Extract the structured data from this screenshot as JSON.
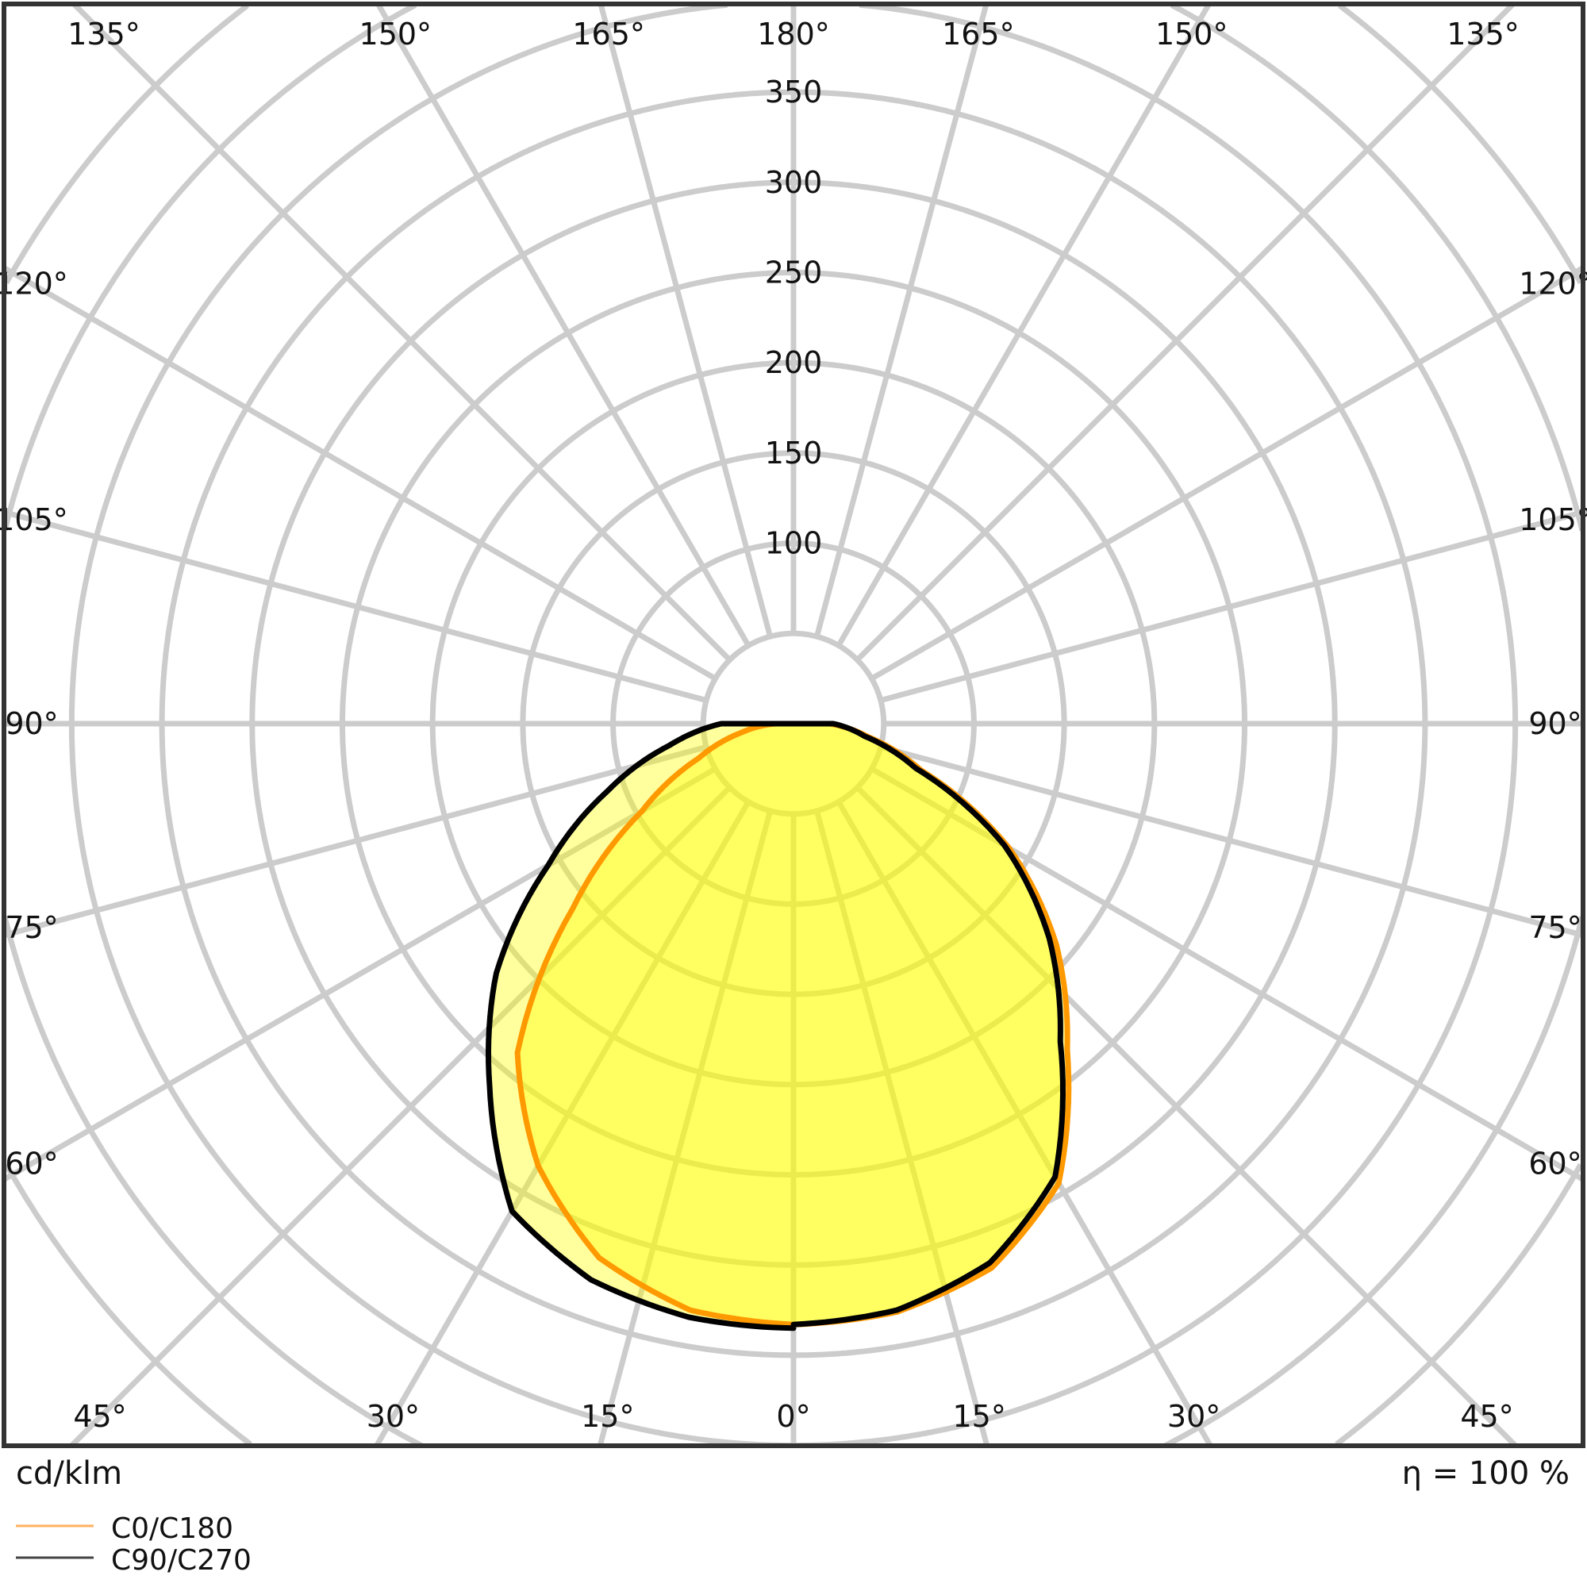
{
  "chart_data": {
    "type": "polar",
    "unit_label": "cd/klm",
    "efficiency_label": "η = 100 %",
    "radial_ticks": [
      100,
      150,
      200,
      250,
      300,
      350
    ],
    "radial_ring_step": 50,
    "angle_step": 15,
    "grid": true,
    "legend_placement": "bottom-left",
    "angle_labels": {
      "top": [
        "135°",
        "150°",
        "165°",
        "180°",
        "165°",
        "150°",
        "135°"
      ],
      "left": [
        "120°",
        "105°",
        "90°",
        "75°",
        "60°"
      ],
      "right": [
        "120°",
        "105°",
        "90°",
        "75°",
        "60°"
      ],
      "bottom": [
        "45°",
        "30°",
        "15°",
        "0°",
        "15°",
        "30°",
        "45°"
      ]
    },
    "gamma": [
      0,
      10,
      20,
      30,
      40,
      50,
      60,
      70,
      80,
      90
    ],
    "series": [
      {
        "name": "C0/C180",
        "color": "#ff9900",
        "left_values": [
          333,
          330,
          315,
          283,
          238,
          160,
          97,
          56,
          30,
          10
        ],
        "right_values": [
          333,
          331,
          321,
          294,
          236,
          190,
          138,
          75,
          42,
          20
        ]
      },
      {
        "name": "C90/C270",
        "color": "#000000",
        "left_values": [
          335,
          334,
          328,
          312,
          262,
          215,
          157,
          110,
          70,
          40
        ],
        "right_values": [
          333,
          330,
          318,
          290,
          230,
          185,
          135,
          72,
          40,
          22
        ]
      }
    ],
    "fill_color": "#ffff00"
  }
}
